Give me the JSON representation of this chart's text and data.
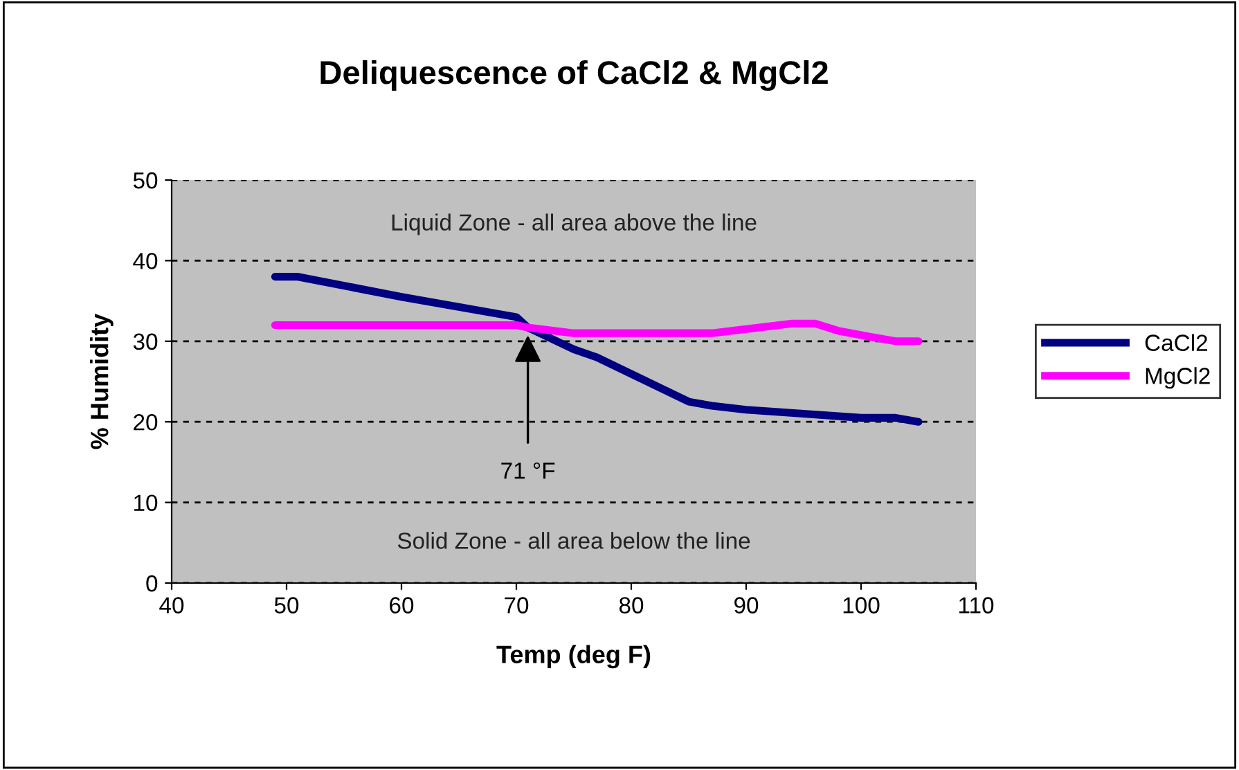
{
  "chart_data": {
    "type": "line",
    "title": "Deliquescence of CaCl2 & MgCl2",
    "xlabel": "Temp (deg F)",
    "ylabel": "% Humidity",
    "series": [
      {
        "name": "CaCl2",
        "color": "#000080",
        "x": [
          49,
          51,
          60,
          70,
          71,
          75,
          77,
          85,
          87,
          90,
          95,
          100,
          103,
          105
        ],
        "values": [
          38,
          38,
          35.5,
          33,
          31.7,
          29,
          28,
          22.5,
          22,
          21.5,
          21,
          20.5,
          20.5,
          20
        ]
      },
      {
        "name": "MgCl2",
        "color": "#ff00ff",
        "x": [
          49,
          70,
          71,
          75,
          87,
          90,
          94,
          96,
          98,
          101,
          103,
          105
        ],
        "values": [
          32,
          32,
          31.7,
          31,
          31,
          31.5,
          32.2,
          32.2,
          31.3,
          30.5,
          30,
          30
        ]
      }
    ],
    "xlim": [
      40,
      110
    ],
    "xticks": [
      40,
      50,
      60,
      70,
      80,
      90,
      100,
      110
    ],
    "ylim": [
      0,
      50
    ],
    "yticks": [
      0,
      10,
      20,
      30,
      40,
      50
    ],
    "grid": "y",
    "legend": "right",
    "line_style": "solid",
    "marker": "none",
    "annotations": [
      "Liquid Zone - all area above the line",
      "Solid Zone - all area below the line",
      {
        "text": "71 °F",
        "x": 71,
        "y": 31.7
      }
    ]
  }
}
